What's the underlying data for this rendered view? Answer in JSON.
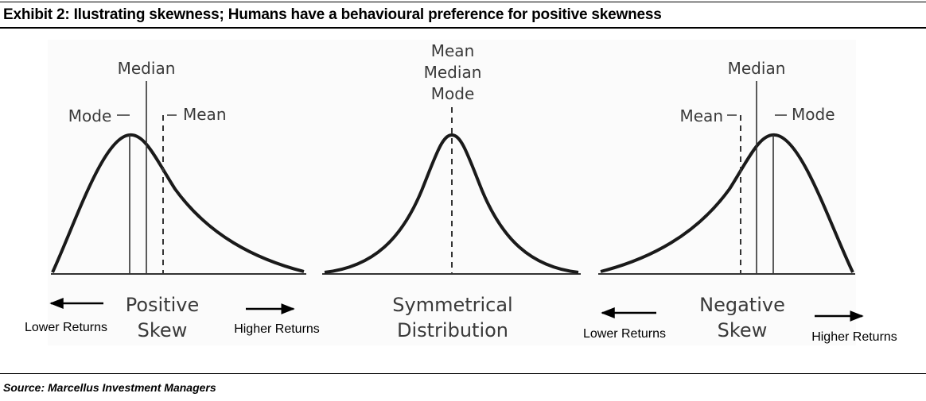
{
  "header": {
    "title": "Exhibit 2: Ilustrating skewness; Humans have a behavioural preference for positive skewness"
  },
  "footer": {
    "source": "Source: Marcellus Investment Managers"
  },
  "panels": {
    "positive": {
      "median": "Median",
      "mode": "Mode",
      "mean": "Mean",
      "name_line1": "Positive",
      "name_line2": "Skew",
      "left_label": "Lower Returns",
      "right_label": "Higher Returns"
    },
    "symmetric": {
      "line1": "Mean",
      "line2": "Median",
      "line3": "Mode",
      "name_line1": "Symmetrical",
      "name_line2": "Distribution"
    },
    "negative": {
      "median": "Median",
      "mean": "Mean",
      "mode": "Mode",
      "name_line1": "Negative",
      "name_line2": "Skew",
      "left_label": "Lower Returns",
      "right_label": "Higher Returns"
    }
  }
}
